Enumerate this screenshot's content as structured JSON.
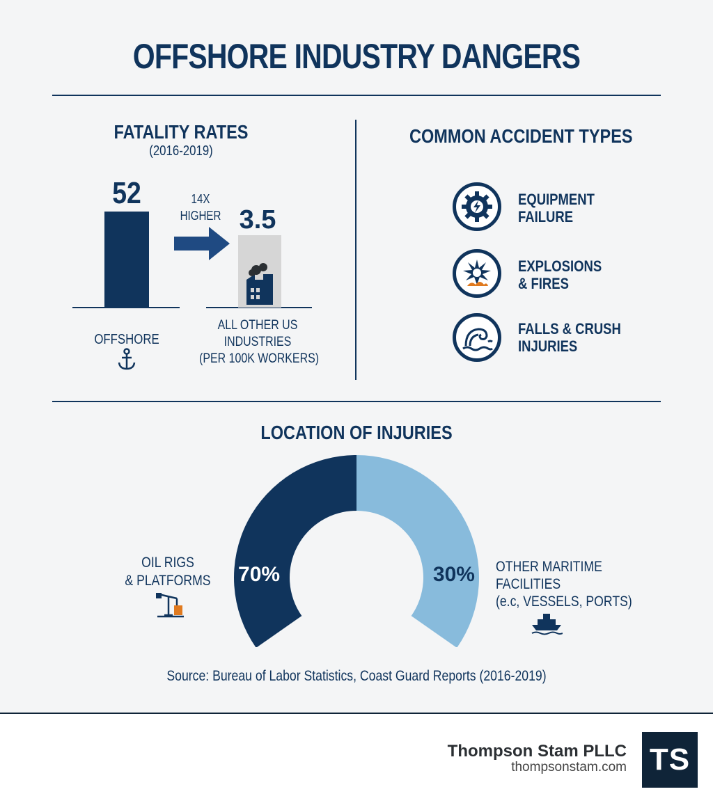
{
  "title": "OFFSHORE INDUSTRY DANGERS",
  "fatality": {
    "heading": "FATALITY RATES",
    "period": "(2016-2019)",
    "comparison_label_line1": "14X",
    "comparison_label_line2": "HIGHER",
    "offshore_label": "OFFSHORE",
    "other_label_line1": "ALL OTHER US",
    "other_label_line2": "INDUSTRIES",
    "other_label_line3": "(PER 100K WORKERS)"
  },
  "accidents": {
    "heading": "COMMON ACCIDENT TYPES",
    "items": [
      {
        "label": "EQUIPMENT\nFAILURE",
        "icon": "gear-icon"
      },
      {
        "label": "EXPLOSIONS\n& FIRES",
        "icon": "explosion-icon"
      },
      {
        "label": "FALLS & CRUSH\nINJURIES",
        "icon": "wave-icon"
      }
    ]
  },
  "location": {
    "heading": "LOCATION OF INJURIES",
    "left_label_line1": "OIL RIGS",
    "left_label_line2": "& PLATFORMS",
    "right_label_line1": "OTHER MARITIME",
    "right_label_line2": "FACILITIES",
    "right_label_line3": "(e.c, VESSELS, PORTS)"
  },
  "source": "Source: Bureau of Labor Statistics, Coast Guard Reports (2016-2019)",
  "footer": {
    "company": "Thompson Stam PLLC",
    "website": "thompsonstam.com",
    "logo_text": "TS"
  },
  "colors": {
    "navy": "#10345c",
    "light_blue": "#88bbdc",
    "gray_bar": "#d6d6d6"
  },
  "chart_data": [
    {
      "type": "bar",
      "title": "FATALITY RATES",
      "subtitle": "(2016-2019)",
      "categories": [
        "OFFSHORE",
        "ALL OTHER US INDUSTRIES"
      ],
      "values": [
        52,
        3.5
      ],
      "value_labels": [
        "52",
        "3.5"
      ],
      "unit": "per 100K workers",
      "annotation": "14X HIGHER",
      "ylim": [
        0,
        52
      ]
    },
    {
      "type": "pie",
      "title": "LOCATION OF INJURIES",
      "style": "semi-donut",
      "categories": [
        "OIL RIGS & PLATFORMS",
        "OTHER MARITIME FACILITIES (e.c, VESSELS, PORTS)"
      ],
      "values": [
        70,
        30
      ],
      "value_labels": [
        "70%",
        "30%"
      ]
    }
  ]
}
